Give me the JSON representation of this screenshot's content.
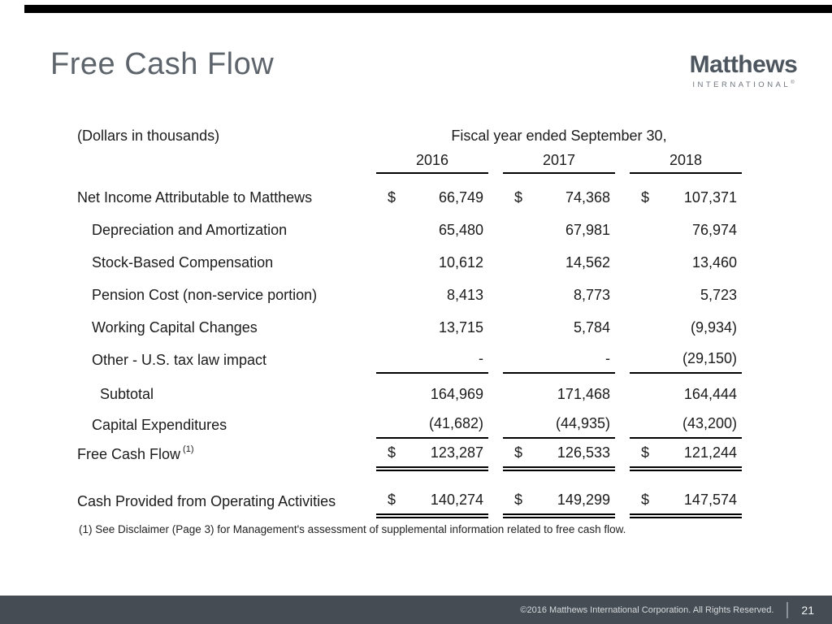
{
  "slide": {
    "title": "Free Cash Flow",
    "footnote": "(1)  See Disclaimer (Page 3) for Management's assessment of supplemental information related to free cash flow.",
    "footer_copyright": "©2016 Matthews International Corporation. All Rights Reserved.",
    "page_number": "21"
  },
  "logo": {
    "name": "Matthews",
    "subtitle": "INTERNATIONAL",
    "registered": "®"
  },
  "colors": {
    "title_gray": "#5d646b",
    "logo_slate": "#4d565f",
    "footer_bg": "#454c54",
    "rule_black": "#000000"
  },
  "table": {
    "units_note": "(Dollars in thousands)",
    "header": "Fiscal year ended September 30,",
    "currency": "$",
    "years": [
      "2016",
      "2017",
      "2018"
    ],
    "rows": [
      {
        "label": "Net Income Attributable to Matthews",
        "values": [
          "66,749",
          "74,368",
          "107,371"
        ]
      },
      {
        "label": "Depreciation and Amortization",
        "values": [
          "65,480",
          "67,981",
          "76,974"
        ]
      },
      {
        "label": "Stock-Based Compensation",
        "values": [
          "10,612",
          "14,562",
          "13,460"
        ]
      },
      {
        "label": "Pension Cost (non-service portion)",
        "values": [
          "8,413",
          "8,773",
          "5,723"
        ]
      },
      {
        "label": "Working Capital Changes",
        "values": [
          "13,715",
          "5,784",
          "(9,934)"
        ]
      },
      {
        "label": "Other - U.S. tax law impact",
        "values": [
          "-",
          "-",
          "(29,150)"
        ]
      },
      {
        "label": "Subtotal",
        "values": [
          "164,969",
          "171,468",
          "164,444"
        ]
      },
      {
        "label": "Capital Expenditures",
        "values": [
          "(41,682)",
          "(44,935)",
          "(43,200)"
        ]
      },
      {
        "label": "Free Cash Flow",
        "footnote_ref": "(1)",
        "values": [
          "123,287",
          "126,533",
          "121,244"
        ]
      },
      {
        "label": "Cash Provided from Operating Activities",
        "values": [
          "140,274",
          "149,299",
          "147,574"
        ]
      }
    ]
  }
}
